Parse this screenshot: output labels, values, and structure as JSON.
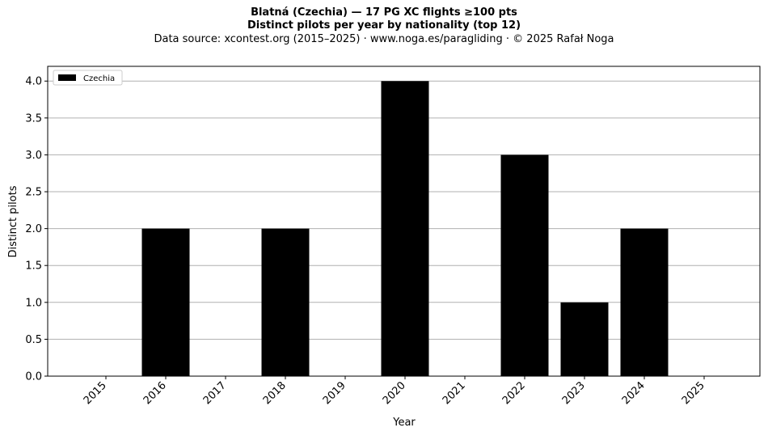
{
  "titles": {
    "main": "Blatná (Czechia)  —  17 PG XC flights ≥100 pts",
    "sub": "Distinct pilots per year by nationality (top 12)",
    "source": "Data source: xcontest.org (2015–2025)  ·  www.noga.es/paragliding  ·  © 2025 Rafał Noga"
  },
  "chart_data": {
    "type": "bar",
    "categories": [
      "2015",
      "2016",
      "2017",
      "2018",
      "2019",
      "2020",
      "2021",
      "2022",
      "2023",
      "2024",
      "2025"
    ],
    "series": [
      {
        "name": "Czechia",
        "color": "#000000",
        "values": [
          0,
          2,
          0,
          2,
          0,
          4,
          0,
          3,
          1,
          2,
          0
        ]
      }
    ],
    "xlabel": "Year",
    "ylabel": "Distinct pilots",
    "ylim": [
      0,
      4.2
    ],
    "yticks": [
      "0.0",
      "0.5",
      "1.0",
      "1.5",
      "2.0",
      "2.5",
      "3.0",
      "3.5",
      "4.0"
    ],
    "grid": "horizontal",
    "legend_position": "top-left"
  }
}
